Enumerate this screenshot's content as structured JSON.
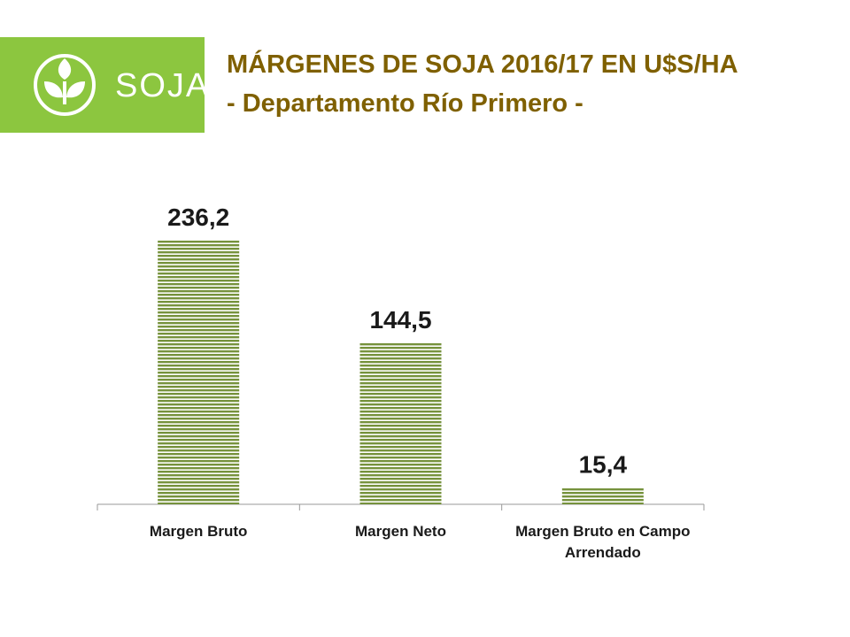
{
  "logo": {
    "text": "SOJA"
  },
  "chart_data": {
    "type": "bar",
    "title": "MÁRGENES DE SOJA 2016/17 EN U$S/HA",
    "subtitle": "- Departamento Río Primero -",
    "categories": [
      "Margen Bruto",
      "Margen Neto",
      "Margen Bruto en Campo Arrendado"
    ],
    "values": [
      236.2,
      144.5,
      15.4
    ],
    "value_labels": [
      "236,2",
      "144,5",
      "15,4"
    ],
    "color": "#76923c"
  }
}
